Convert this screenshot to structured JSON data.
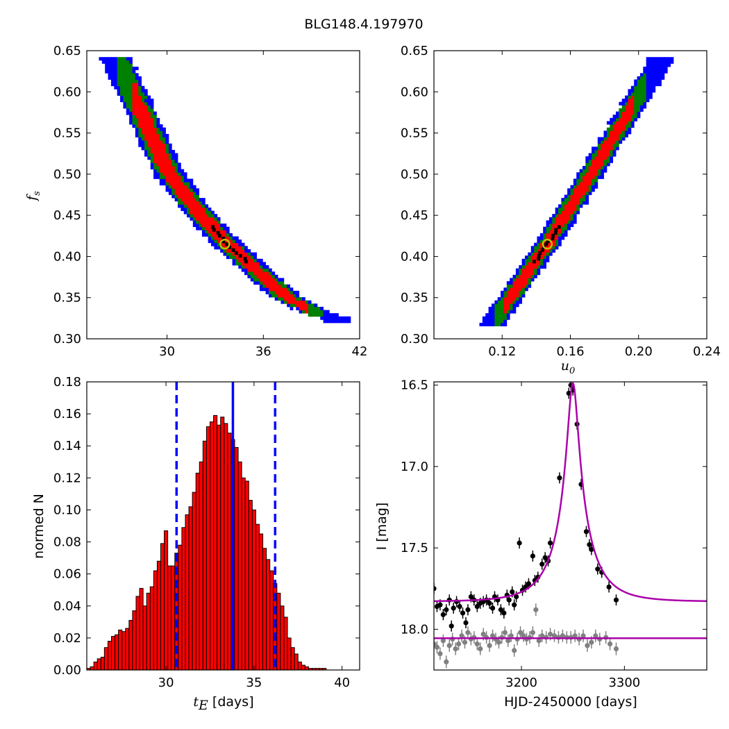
{
  "figure_title": "BLG148.4.197970",
  "colors": {
    "level1": "#0000ff",
    "level2": "#008000",
    "level3": "#ff0000",
    "best": "#000000",
    "marker": "#bfbf00",
    "hist_bar": "#ff0000",
    "model": "#aa00aa",
    "data_main": "#000000",
    "data_resid": "#808080",
    "median_line": "#0000ff"
  },
  "chart_data": [
    {
      "id": "tE-fs",
      "type": "heatmap",
      "description_levels": [
        "blue",
        "green",
        "red",
        "black"
      ],
      "xlim": [
        25,
        42
      ],
      "ylim": [
        0.3,
        0.65
      ],
      "xticks": [
        30,
        36,
        42
      ],
      "xtick_labels": [
        "30",
        "36",
        "42"
      ],
      "yticks": [
        0.3,
        0.35,
        0.4,
        0.45,
        0.5,
        0.55,
        0.6,
        0.65
      ],
      "ytick_labels": [
        "0.30",
        "0.35",
        "0.40",
        "0.45",
        "0.50",
        "0.55",
        "0.60",
        "0.65"
      ],
      "xlabel": "",
      "ylabel": "f",
      "ylabel_sub": "s",
      "best_fit": {
        "x": 33.6,
        "y": 0.415
      },
      "ridge": [
        [
          26.8,
          0.64
        ],
        [
          28.5,
          0.57
        ],
        [
          30.0,
          0.505
        ],
        [
          31.5,
          0.465
        ],
        [
          33.5,
          0.42
        ],
        [
          35.5,
          0.385
        ],
        [
          37.5,
          0.35
        ],
        [
          39.5,
          0.33
        ],
        [
          40.5,
          0.325
        ]
      ],
      "widths": {
        "level1": 0.95,
        "level2": 0.72,
        "level3": 0.5
      },
      "fill_min": {
        "level2": 26.8,
        "level3": 27.8
      },
      "fill_max": {
        "level2": 39.8,
        "level3": 38.8
      }
    },
    {
      "id": "u0-fs",
      "type": "heatmap",
      "xlim": [
        0.08,
        0.24
      ],
      "ylim": [
        0.3,
        0.65
      ],
      "xticks": [
        0.12,
        0.16,
        0.2,
        0.24
      ],
      "xtick_labels": [
        "0.12",
        "0.16",
        "0.20",
        "0.24"
      ],
      "yticks": [
        0.3,
        0.35,
        0.4,
        0.45,
        0.5,
        0.55,
        0.6,
        0.65
      ],
      "ytick_labels": [
        "0.30",
        "0.35",
        "0.40",
        "0.45",
        "0.50",
        "0.55",
        "0.60",
        "0.65"
      ],
      "xlabel": "u",
      "xlabel_sub": "0",
      "ylabel": "",
      "best_fit": {
        "x": 0.1465,
        "y": 0.415
      },
      "ridge": [
        [
          0.1145,
          0.32
        ],
        [
          0.1465,
          0.415
        ],
        [
          0.2135,
          0.64
        ]
      ],
      "widths": {
        "level1": 0.0075,
        "level2": 0.0055,
        "level3": 0.0035
      },
      "fill_min": {
        "level2": 0.116,
        "level3": 0.121
      },
      "fill_max": {
        "level2": 0.2045,
        "level3": 0.1975
      }
    },
    {
      "id": "tE-hist",
      "type": "bar",
      "xlim": [
        25.5,
        41
      ],
      "ylim": [
        0,
        0.18
      ],
      "xticks": [
        30,
        35,
        40
      ],
      "xtick_labels": [
        "30",
        "35",
        "40"
      ],
      "yticks": [
        0,
        0.02,
        0.04,
        0.06,
        0.08,
        0.1,
        0.12,
        0.14,
        0.16,
        0.18
      ],
      "ytick_labels": [
        "0.00",
        "0.02",
        "0.04",
        "0.06",
        "0.08",
        "0.10",
        "0.12",
        "0.14",
        "0.16",
        "0.18"
      ],
      "xlabel_math": "t",
      "xlabel_sub": "E",
      "xlabel_units": " [days]",
      "ylabel": "normed N",
      "bin_start": 25.5,
      "bin_width": 0.2,
      "values": [
        0.001,
        0.002,
        0.005,
        0.007,
        0.008,
        0.014,
        0.018,
        0.021,
        0.022,
        0.025,
        0.024,
        0.026,
        0.031,
        0.037,
        0.046,
        0.051,
        0.04,
        0.048,
        0.052,
        0.062,
        0.068,
        0.079,
        0.087,
        0.065,
        0.065,
        0.073,
        0.078,
        0.089,
        0.097,
        0.102,
        0.111,
        0.123,
        0.13,
        0.143,
        0.152,
        0.155,
        0.159,
        0.153,
        0.158,
        0.154,
        0.148,
        0.144,
        0.139,
        0.13,
        0.12,
        0.118,
        0.106,
        0.1,
        0.091,
        0.085,
        0.076,
        0.069,
        0.062,
        0.054,
        0.048,
        0.04,
        0.033,
        0.02,
        0.014,
        0.01,
        0.005,
        0.003,
        0.002,
        0.001,
        0.001,
        0.001,
        0.001,
        0.001
      ],
      "median": 33.8,
      "lower": 30.6,
      "upper": 36.2
    },
    {
      "id": "lightcurve",
      "type": "line",
      "xlim": [
        3115,
        3380
      ],
      "ylim": [
        18.25,
        16.48
      ],
      "xticks": [
        3200,
        3300
      ],
      "xtick_labels": [
        "3200",
        "3300"
      ],
      "yticks": [
        16.5,
        17.0,
        17.5,
        18.0
      ],
      "ytick_labels": [
        "16.5",
        "17.0",
        "17.5",
        "18.0"
      ],
      "xlabel": "HJD-2450000 [days]",
      "ylabel": "I [mag]",
      "model": {
        "t0": 3250,
        "tE": 33.8,
        "u0": 0.1465,
        "fs": 0.415,
        "base": 17.83
      },
      "resid_level": 18.055,
      "data": [
        [
          3115,
          17.75
        ],
        [
          3118,
          17.86
        ],
        [
          3121,
          17.85
        ],
        [
          3124,
          17.91
        ],
        [
          3127,
          17.88
        ],
        [
          3130,
          17.82
        ],
        [
          3132,
          17.98
        ],
        [
          3134,
          17.87
        ],
        [
          3137,
          17.83
        ],
        [
          3140,
          17.86
        ],
        [
          3143,
          17.9
        ],
        [
          3146,
          17.96
        ],
        [
          3148,
          17.88
        ],
        [
          3151,
          17.8
        ],
        [
          3154,
          17.82
        ],
        [
          3157,
          17.86
        ],
        [
          3160,
          17.84
        ],
        [
          3163,
          17.83
        ],
        [
          3166,
          17.82
        ],
        [
          3169,
          17.84
        ],
        [
          3172,
          17.87
        ],
        [
          3174,
          17.8
        ],
        [
          3177,
          17.82
        ],
        [
          3180,
          17.88
        ],
        [
          3183,
          17.9
        ],
        [
          3186,
          17.79
        ],
        [
          3188,
          17.82
        ],
        [
          3191,
          17.77
        ],
        [
          3193,
          17.85
        ],
        [
          3195,
          17.8
        ],
        [
          3198,
          17.47
        ],
        [
          3201,
          17.76
        ],
        [
          3204,
          17.74
        ],
        [
          3207,
          17.72
        ],
        [
          3211,
          17.55
        ],
        [
          3213,
          17.7
        ],
        [
          3216,
          17.68
        ],
        [
          3220,
          17.6
        ],
        [
          3223,
          17.56
        ],
        [
          3226,
          17.58
        ],
        [
          3228,
          17.47
        ],
        [
          3237,
          17.07
        ],
        [
          3246,
          16.55
        ],
        [
          3248,
          16.5
        ],
        [
          3250,
          16.53
        ],
        [
          3254,
          16.74
        ],
        [
          3258,
          17.11
        ],
        [
          3263,
          17.4
        ],
        [
          3266,
          17.48
        ],
        [
          3268,
          17.51
        ],
        [
          3274,
          17.63
        ],
        [
          3278,
          17.65
        ],
        [
          3285,
          17.74
        ],
        [
          3292,
          17.82
        ]
      ],
      "resid": [
        [
          3115,
          18.09
        ],
        [
          3118,
          18.11
        ],
        [
          3121,
          18.15
        ],
        [
          3124,
          18.07
        ],
        [
          3127,
          18.2
        ],
        [
          3130,
          18.1
        ],
        [
          3133,
          18.06
        ],
        [
          3136,
          18.12
        ],
        [
          3139,
          18.09
        ],
        [
          3142,
          18.04
        ],
        [
          3145,
          18.08
        ],
        [
          3148,
          18.02
        ],
        [
          3151,
          18.06
        ],
        [
          3154,
          18.05
        ],
        [
          3157,
          18.09
        ],
        [
          3160,
          18.12
        ],
        [
          3163,
          18.03
        ],
        [
          3166,
          18.05
        ],
        [
          3169,
          18.1
        ],
        [
          3172,
          18.04
        ],
        [
          3175,
          18.06
        ],
        [
          3178,
          18.08
        ],
        [
          3181,
          18.05
        ],
        [
          3184,
          18.02
        ],
        [
          3187,
          18.07
        ],
        [
          3190,
          18.04
        ],
        [
          3193,
          18.13
        ],
        [
          3196,
          18.06
        ],
        [
          3199,
          18.02
        ],
        [
          3202,
          18.04
        ],
        [
          3205,
          18.06
        ],
        [
          3208,
          18.05
        ],
        [
          3211,
          18.02
        ],
        [
          3214,
          17.88
        ],
        [
          3217,
          18.07
        ],
        [
          3220,
          18.04
        ],
        [
          3224,
          18.05
        ],
        [
          3228,
          18.03
        ],
        [
          3232,
          18.04
        ],
        [
          3236,
          18.05
        ],
        [
          3240,
          18.04
        ],
        [
          3244,
          18.05
        ],
        [
          3248,
          18.05
        ],
        [
          3252,
          18.04
        ],
        [
          3256,
          18.06
        ],
        [
          3260,
          18.04
        ],
        [
          3264,
          18.1
        ],
        [
          3268,
          18.08
        ],
        [
          3272,
          18.04
        ],
        [
          3276,
          18.06
        ],
        [
          3282,
          18.05
        ],
        [
          3286,
          18.09
        ],
        [
          3292,
          18.12
        ]
      ]
    }
  ]
}
